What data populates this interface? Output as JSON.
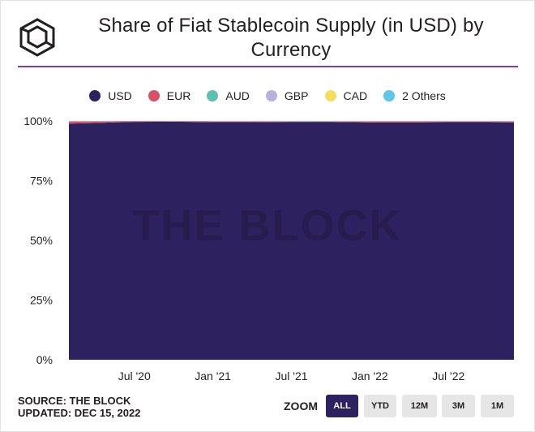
{
  "header": {
    "title": "Share of Fiat Stablecoin Supply (in USD) by Currency"
  },
  "legend": [
    {
      "name": "USD",
      "color": "#2e2160"
    },
    {
      "name": "EUR",
      "color": "#d95068"
    },
    {
      "name": "AUD",
      "color": "#5ebfb3"
    },
    {
      "name": "GBP",
      "color": "#b9b1dc"
    },
    {
      "name": "CAD",
      "color": "#f6dd5a"
    },
    {
      "name": "2 Others",
      "color": "#5ec6e8"
    }
  ],
  "watermark": "THE BLOCK",
  "footer": {
    "source": "SOURCE: THE BLOCK",
    "updated": "UPDATED: DEC 15, 2022"
  },
  "zoom": {
    "label": "ZOOM",
    "buttons": [
      "ALL",
      "YTD",
      "12M",
      "3M",
      "1M"
    ],
    "active": "ALL"
  },
  "chart_data": {
    "type": "area",
    "stacked": "percent",
    "title": "Share of Fiat Stablecoin Supply (in USD) by Currency",
    "x_ticks": [
      "Jul '20",
      "Jan '21",
      "Jul '21",
      "Jan '22",
      "Jul '22"
    ],
    "y_ticks": [
      "0%",
      "25%",
      "50%",
      "75%",
      "100%"
    ],
    "ylim": [
      0,
      100
    ],
    "x": [
      "2020-02",
      "2020-05",
      "2020-07",
      "2020-10",
      "2021-01",
      "2021-04",
      "2021-07",
      "2021-10",
      "2022-01",
      "2022-04",
      "2022-07",
      "2022-10",
      "2022-12"
    ],
    "series": [
      {
        "name": "USD",
        "values": [
          98.9,
          99.3,
          99.6,
          99.7,
          99.5,
          99.5,
          99.6,
          99.6,
          99.4,
          99.4,
          99.5,
          99.5,
          99.4
        ]
      },
      {
        "name": "EUR",
        "values": [
          0.9,
          0.5,
          0.3,
          0.2,
          0.3,
          0.3,
          0.2,
          0.2,
          0.4,
          0.4,
          0.3,
          0.3,
          0.4
        ]
      },
      {
        "name": "AUD",
        "values": [
          0,
          0,
          0,
          0,
          0.05,
          0.05,
          0.05,
          0.05,
          0.05,
          0.05,
          0.05,
          0.05,
          0.05
        ]
      },
      {
        "name": "GBP",
        "values": [
          0.1,
          0.1,
          0.05,
          0.05,
          0.05,
          0.05,
          0.05,
          0.05,
          0.05,
          0.05,
          0.05,
          0.05,
          0.05
        ]
      },
      {
        "name": "CAD",
        "values": [
          0,
          0,
          0,
          0,
          0.05,
          0.05,
          0.05,
          0.05,
          0.05,
          0.05,
          0.05,
          0.05,
          0.05
        ]
      },
      {
        "name": "2 Others",
        "values": [
          0.1,
          0.1,
          0.05,
          0.05,
          0.05,
          0.05,
          0.05,
          0.05,
          0.05,
          0.05,
          0.05,
          0.05,
          0.05
        ]
      }
    ]
  }
}
